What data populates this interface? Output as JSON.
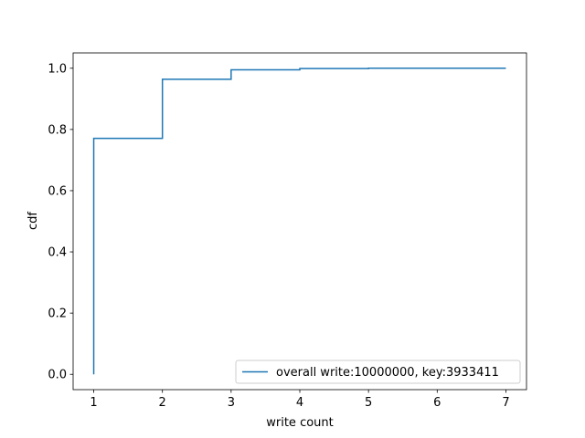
{
  "chart_data": {
    "type": "line",
    "title": "",
    "xlabel": "write count",
    "ylabel": "cdf",
    "xlim": [
      0.7,
      7.3
    ],
    "ylim": [
      -0.05,
      1.05
    ],
    "xticks": [
      1,
      2,
      3,
      4,
      5,
      6,
      7
    ],
    "yticks": [
      0.0,
      0.2,
      0.4,
      0.6,
      0.8,
      1.0
    ],
    "ytick_labels": [
      "0.0",
      "0.2",
      "0.4",
      "0.6",
      "0.8",
      "1.0"
    ],
    "grid": false,
    "legend_position": "lower-right",
    "step_style": "post",
    "series": [
      {
        "name": "overall write:10000000, key:3933411",
        "color": "#1f77b4",
        "x": [
          1,
          1,
          2,
          3,
          4,
          5,
          6,
          7
        ],
        "y": [
          0.0,
          0.771,
          0.964,
          0.995,
          0.999,
          1.0,
          1.0,
          1.0
        ]
      }
    ]
  }
}
